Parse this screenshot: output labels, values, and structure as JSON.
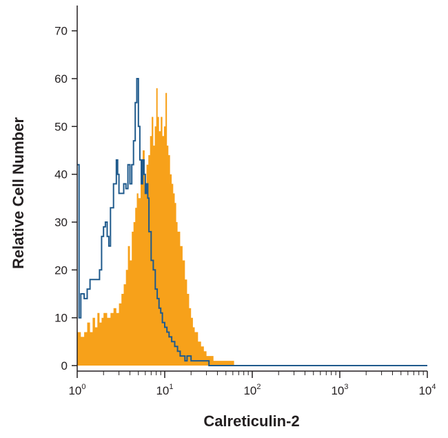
{
  "chart_data": {
    "type": "area",
    "xlabel": "Calreticulin-2",
    "ylabel": "Relative Cell Number",
    "x_scale": "log",
    "xlim": [
      1,
      10000
    ],
    "ylim": [
      0,
      75
    ],
    "x_ticks": [
      {
        "value": 1,
        "base": "10",
        "exp": "0"
      },
      {
        "value": 10,
        "base": "10",
        "exp": "1"
      },
      {
        "value": 100,
        "base": "10",
        "exp": "2"
      },
      {
        "value": 1000,
        "base": "10",
        "exp": "3"
      },
      {
        "value": 10000,
        "base": "10",
        "exp": "4"
      }
    ],
    "y_ticks": [
      "0",
      "10",
      "20",
      "30",
      "40",
      "50",
      "60",
      "70"
    ],
    "grid": false,
    "series": [
      {
        "color": "#f7a11a",
        "style": "filled-histogram",
        "points": [
          [
            1.0,
            7
          ],
          [
            1.1,
            6
          ],
          [
            1.2,
            7
          ],
          [
            1.3,
            9
          ],
          [
            1.4,
            7
          ],
          [
            1.5,
            10
          ],
          [
            1.6,
            8
          ],
          [
            1.7,
            11
          ],
          [
            1.8,
            9
          ],
          [
            1.9,
            10
          ],
          [
            2.0,
            11
          ],
          [
            2.2,
            10
          ],
          [
            2.4,
            11
          ],
          [
            2.6,
            12
          ],
          [
            2.8,
            11
          ],
          [
            3.0,
            13
          ],
          [
            3.2,
            15
          ],
          [
            3.4,
            17
          ],
          [
            3.6,
            20
          ],
          [
            3.8,
            25
          ],
          [
            4.0,
            22
          ],
          [
            4.2,
            28
          ],
          [
            4.4,
            30
          ],
          [
            4.6,
            33
          ],
          [
            4.8,
            36
          ],
          [
            5.0,
            35
          ],
          [
            5.3,
            40
          ],
          [
            5.6,
            45
          ],
          [
            5.9,
            38
          ],
          [
            6.2,
            42
          ],
          [
            6.5,
            44
          ],
          [
            6.8,
            48
          ],
          [
            7.1,
            52
          ],
          [
            7.4,
            46
          ],
          [
            7.7,
            50
          ],
          [
            8.0,
            58
          ],
          [
            8.3,
            52
          ],
          [
            8.6,
            49
          ],
          [
            9.0,
            52
          ],
          [
            9.4,
            48
          ],
          [
            9.8,
            50
          ],
          [
            10.2,
            57
          ],
          [
            10.6,
            46
          ],
          [
            11.0,
            44
          ],
          [
            11.5,
            40
          ],
          [
            12.0,
            38
          ],
          [
            12.5,
            36
          ],
          [
            13.0,
            34
          ],
          [
            13.5,
            30
          ],
          [
            14.0,
            28
          ],
          [
            15.0,
            25
          ],
          [
            16.0,
            22
          ],
          [
            17.0,
            18
          ],
          [
            18.0,
            15
          ],
          [
            19.0,
            12
          ],
          [
            20.0,
            10
          ],
          [
            21.0,
            8
          ],
          [
            22.0,
            7
          ],
          [
            24.0,
            5
          ],
          [
            26.0,
            4
          ],
          [
            28.0,
            3
          ],
          [
            30.0,
            2
          ],
          [
            33.0,
            2
          ],
          [
            36.0,
            1
          ],
          [
            40.0,
            1
          ],
          [
            45.0,
            1
          ],
          [
            50.0,
            1
          ],
          [
            56.0,
            1
          ],
          [
            62.0,
            0
          ]
        ]
      },
      {
        "color": "#1f5a8c",
        "style": "step-outline",
        "points": [
          [
            1.0,
            42
          ],
          [
            1.05,
            10
          ],
          [
            1.1,
            15
          ],
          [
            1.2,
            14
          ],
          [
            1.3,
            16
          ],
          [
            1.4,
            18
          ],
          [
            1.5,
            18
          ],
          [
            1.6,
            18
          ],
          [
            1.8,
            20
          ],
          [
            1.9,
            27
          ],
          [
            2.0,
            29
          ],
          [
            2.1,
            30
          ],
          [
            2.2,
            27
          ],
          [
            2.3,
            25
          ],
          [
            2.4,
            33
          ],
          [
            2.6,
            38
          ],
          [
            2.8,
            43
          ],
          [
            2.9,
            40
          ],
          [
            3.0,
            36
          ],
          [
            3.2,
            36
          ],
          [
            3.4,
            38
          ],
          [
            3.6,
            37
          ],
          [
            3.8,
            42
          ],
          [
            4.0,
            38
          ],
          [
            4.2,
            42
          ],
          [
            4.4,
            47
          ],
          [
            4.6,
            55
          ],
          [
            4.8,
            60
          ],
          [
            5.0,
            50
          ],
          [
            5.2,
            43
          ],
          [
            5.4,
            38
          ],
          [
            5.6,
            43
          ],
          [
            5.8,
            40
          ],
          [
            6.0,
            36
          ],
          [
            6.2,
            38
          ],
          [
            6.4,
            35
          ],
          [
            6.6,
            28
          ],
          [
            7.0,
            22
          ],
          [
            7.4,
            20
          ],
          [
            7.8,
            16
          ],
          [
            8.2,
            14
          ],
          [
            8.6,
            12
          ],
          [
            9.0,
            11
          ],
          [
            9.4,
            9
          ],
          [
            10.0,
            8
          ],
          [
            10.6,
            7
          ],
          [
            11.2,
            6
          ],
          [
            12.0,
            5
          ],
          [
            13.0,
            4
          ],
          [
            14.0,
            3
          ],
          [
            15.0,
            2
          ],
          [
            16.0,
            2
          ],
          [
            17.0,
            1
          ],
          [
            18.0,
            2
          ],
          [
            20.0,
            1
          ],
          [
            22.0,
            1
          ],
          [
            25.0,
            1
          ],
          [
            28.0,
            1
          ],
          [
            32.0,
            0
          ],
          [
            40.0,
            0
          ],
          [
            60.0,
            0
          ],
          [
            100.0,
            0
          ],
          [
            1000.0,
            0
          ],
          [
            10000.0,
            0
          ]
        ]
      }
    ]
  }
}
